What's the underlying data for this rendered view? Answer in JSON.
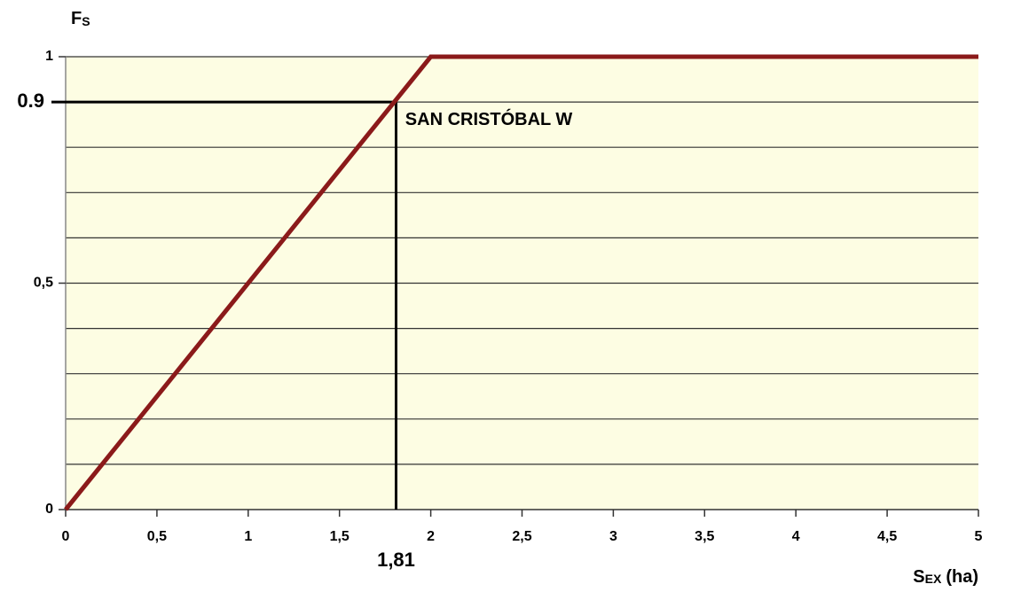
{
  "chart_data": {
    "type": "line",
    "ylabel": "F",
    "ylabel_sub": "S",
    "xlabel": "S",
    "xlabel_sub": "EX",
    "xlabel_unit": "(ha)",
    "series": [
      {
        "name": null,
        "color": "#8b1a1a",
        "x": [
          0,
          2,
          5
        ],
        "values": [
          0,
          1,
          1
        ]
      }
    ],
    "xlim": [
      0,
      5
    ],
    "xticks": [
      0,
      {
        "value": 0.5,
        "label": "0,5"
      },
      1,
      {
        "value": 1.5,
        "label": "1,5"
      },
      2,
      {
        "value": 2.5,
        "label": "2,5"
      },
      3,
      {
        "value": 3.5,
        "label": "3,5"
      },
      4,
      {
        "value": 4.5,
        "label": "4,5"
      },
      5
    ],
    "ylim": [
      0,
      1
    ],
    "yticks": [
      0,
      {
        "value": 0.5,
        "label": "0,5"
      },
      0.9,
      1
    ],
    "ygrid": [
      0.1,
      0.2,
      0.3,
      0.4,
      0.5,
      0.6,
      0.7,
      0.8,
      0.9,
      1
    ],
    "grid": true,
    "reference": {
      "x": {
        "value": 1.81,
        "label": "1,81"
      },
      "y": 0.9
    },
    "annotation": {
      "text": "SAN CRISTÓBAL W",
      "x": 1.86,
      "y": 0.86
    }
  }
}
